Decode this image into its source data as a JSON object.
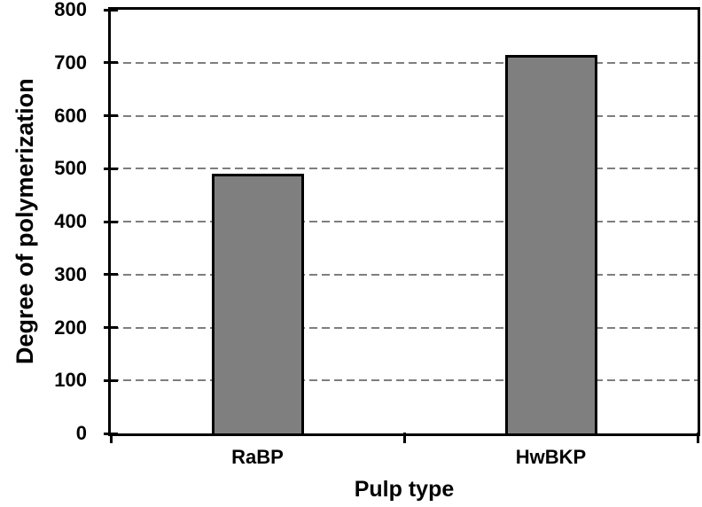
{
  "figure": {
    "background": "#ffffff"
  },
  "chart_data": {
    "type": "bar",
    "title": "",
    "categories": [
      "RaBP",
      "HwBKP"
    ],
    "values": [
      490,
      715
    ],
    "xlabel": "Pulp type",
    "ylabel": "Degree of polymerization",
    "ylim": [
      0,
      800
    ],
    "yticks": [
      0,
      100,
      200,
      300,
      400,
      500,
      600,
      700,
      800
    ],
    "grid": {
      "horizontal": true,
      "style": "dashed",
      "color": "#7e7e7e",
      "at": [
        100,
        200,
        300,
        400,
        500,
        600,
        700
      ]
    },
    "legend": "none",
    "styles": {
      "bar_fill": "#7f7f7f",
      "bar_border": "#000000",
      "axis_color": "#000000",
      "text_color": "#000000",
      "plot_frame": true
    }
  }
}
